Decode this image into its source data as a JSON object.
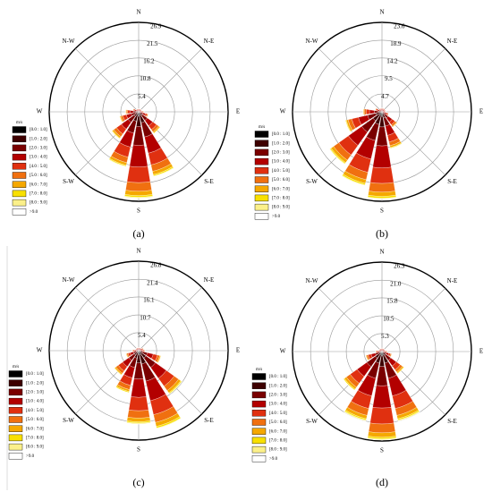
{
  "chart_data": [
    {
      "type": "windrose",
      "caption": "(a)",
      "legend_title": "m/s",
      "categories": [
        "N",
        null,
        "N-E",
        null,
        "E",
        null,
        "S-E",
        null,
        "S",
        null,
        "S-W",
        null,
        "W",
        null,
        "N-W",
        null
      ],
      "rlim": [
        0,
        26.9
      ],
      "rticks": [
        5.4,
        10.8,
        16.2,
        21.5,
        26.9
      ],
      "series": [
        {
          "name": "[0.0 : 1.0]",
          "color": "#000000",
          "values": [
            0.1,
            0.1,
            0.1,
            0.1,
            0.1,
            0.2,
            0.4,
            1,
            1.3,
            0.9,
            0.5,
            0.3,
            0.2,
            0.1,
            0.1,
            0.1
          ]
        },
        {
          "name": "[1.0 : 2.0]",
          "color": "#3d0000",
          "values": [
            0.1,
            0.1,
            0.1,
            0.1,
            0.2,
            0.4,
            1,
            2.4,
            3.1,
            2,
            1.2,
            0.7,
            0.5,
            0.2,
            0.1,
            0.1
          ]
        },
        {
          "name": "[2.0 : 3.0]",
          "color": "#7a0000",
          "values": [
            0.2,
            0.2,
            0.2,
            0.2,
            0.3,
            0.7,
            1.8,
            4.4,
            5.7,
            3.7,
            2.2,
            1.3,
            0.9,
            0.4,
            0.2,
            0.2
          ]
        },
        {
          "name": "[3.0 : 4.0]",
          "color": "#b30000",
          "values": [
            0.3,
            0.3,
            0.3,
            0.3,
            0.4,
            0.8,
            2,
            5,
            6.5,
            4.3,
            2.5,
            1.5,
            1,
            0.5,
            0.3,
            0.3
          ]
        },
        {
          "name": "[4.0 : 5.0]",
          "color": "#e03010",
          "values": [
            0.2,
            0.2,
            0.2,
            0.2,
            0.3,
            0.5,
            1.4,
            3.6,
            4.7,
            3.1,
            1.8,
            1.1,
            0.7,
            0.4,
            0.2,
            0.2
          ]
        },
        {
          "name": "[5.0 : 6.0]",
          "color": "#f07010",
          "values": [
            0.1,
            0.1,
            0.1,
            0.1,
            0.2,
            0.3,
            0.8,
            2,
            2.6,
            1.7,
            1,
            0.6,
            0.4,
            0.2,
            0.1,
            0.1
          ]
        },
        {
          "name": "[6.0 : 7.0]",
          "color": "#f5a800",
          "values": [
            0,
            0,
            0,
            0,
            0.1,
            0.1,
            0.4,
            1,
            1.3,
            0.8,
            0.5,
            0.3,
            0.2,
            0.1,
            0,
            0
          ]
        },
        {
          "name": "[7.0 : 8.0]",
          "color": "#f8e000",
          "values": [
            0,
            0,
            0,
            0,
            0,
            0.1,
            0.2,
            0.4,
            0.5,
            0.3,
            0.2,
            0.1,
            0.1,
            0,
            0,
            0
          ]
        },
        {
          "name": "[8.0 : 9.0]",
          "color": "#fbf08a",
          "values": [
            0,
            0,
            0,
            0,
            0,
            0,
            0,
            0.2,
            0.3,
            0.2,
            0.1,
            0.1,
            0,
            0,
            0,
            0
          ]
        },
        {
          "name": ">9.0",
          "color": "#ffffff",
          "values": [
            0,
            0,
            0,
            0,
            0,
            0,
            0,
            0,
            0,
            0,
            0,
            0,
            0,
            0,
            0,
            0
          ]
        }
      ]
    },
    {
      "type": "windrose",
      "caption": "(b)",
      "legend_title": "m/s",
      "categories": [
        "N",
        null,
        "N-E",
        null,
        "E",
        null,
        "S-E",
        null,
        "S",
        null,
        "S-W",
        null,
        "W",
        null,
        "N-W",
        null
      ],
      "rlim": [
        0,
        23.6
      ],
      "rticks": [
        4.7,
        9.5,
        14.2,
        18.9,
        23.6
      ],
      "series": [
        {
          "name": "[0.0 : 1.0]",
          "color": "#000000",
          "values": [
            0.1,
            0.1,
            0.1,
            0.1,
            0.1,
            0.1,
            0.3,
            0.5,
            1.2,
            1,
            0.9,
            0.5,
            0.3,
            0.1,
            0.1,
            0.1
          ]
        },
        {
          "name": "[1.0 : 2.0]",
          "color": "#3d0000",
          "values": [
            0.1,
            0.1,
            0.1,
            0.1,
            0.1,
            0.2,
            0.6,
            1.2,
            2.8,
            2.4,
            2,
            1.2,
            0.6,
            0.2,
            0.1,
            0.1
          ]
        },
        {
          "name": "[2.0 : 3.0]",
          "color": "#7a0000",
          "values": [
            0.2,
            0.2,
            0.2,
            0.2,
            0.2,
            0.4,
            1.1,
            2.2,
            5,
            4.4,
            3.7,
            2.2,
            1.1,
            0.4,
            0.2,
            0.2
          ]
        },
        {
          "name": "[3.0 : 4.0]",
          "color": "#b30000",
          "values": [
            0.3,
            0.3,
            0.3,
            0.3,
            0.3,
            0.5,
            1.3,
            2.5,
            5.8,
            5,
            4.3,
            2.5,
            1.3,
            0.5,
            0.3,
            0.3
          ]
        },
        {
          "name": "[4.0 : 5.0]",
          "color": "#e03010",
          "values": [
            0.2,
            0.2,
            0.2,
            0.2,
            0.2,
            0.4,
            0.9,
            1.8,
            4.1,
            3.6,
            3.1,
            1.8,
            0.9,
            0.4,
            0.2,
            0.2
          ]
        },
        {
          "name": "[5.0 : 6.0]",
          "color": "#f07010",
          "values": [
            0.1,
            0.1,
            0.1,
            0.1,
            0.1,
            0.2,
            0.5,
            1,
            2.3,
            2,
            1.7,
            1,
            0.5,
            0.2,
            0.1,
            0.1
          ]
        },
        {
          "name": "[6.0 : 7.0]",
          "color": "#f5a800",
          "values": [
            0,
            0,
            0,
            0,
            0,
            0.1,
            0.2,
            0.5,
            1.1,
            1,
            0.8,
            0.5,
            0.2,
            0.1,
            0,
            0
          ]
        },
        {
          "name": "[7.0 : 8.0]",
          "color": "#f8e000",
          "values": [
            0,
            0,
            0,
            0,
            0,
            0,
            0.1,
            0.2,
            0.5,
            0.4,
            0.3,
            0.2,
            0.1,
            0,
            0,
            0
          ]
        },
        {
          "name": "[8.0 : 9.0]",
          "color": "#fbf08a",
          "values": [
            0,
            0,
            0,
            0,
            0,
            0,
            0,
            0.1,
            0.2,
            0.2,
            0.2,
            0.1,
            0,
            0,
            0,
            0
          ]
        },
        {
          "name": ">9.0",
          "color": "#ffffff",
          "values": [
            0,
            0,
            0,
            0,
            0,
            0,
            0,
            0,
            0,
            0,
            0,
            0,
            0,
            0,
            0,
            0
          ]
        }
      ]
    },
    {
      "type": "windrose",
      "caption": "(c)",
      "legend_title": "m/s",
      "categories": [
        "N",
        null,
        "N-E",
        null,
        "E",
        null,
        "S-E",
        null,
        "S",
        null,
        "S-W",
        null,
        "W",
        null,
        "N-W",
        null
      ],
      "rlim": [
        0,
        26.8
      ],
      "rticks": [
        5.4,
        10.7,
        16.1,
        21.4,
        26.8
      ],
      "series": [
        {
          "name": "[0.0 : 1.0]",
          "color": "#000000",
          "values": [
            0.1,
            0.1,
            0.1,
            0.1,
            0.1,
            0.4,
            0.8,
            1.2,
            1.1,
            0.7,
            0.5,
            0.2,
            0.1,
            0.1,
            0.1,
            0.1
          ]
        },
        {
          "name": "[1.0 : 2.0]",
          "color": "#3d0000",
          "values": [
            0.1,
            0.1,
            0.1,
            0.2,
            0.2,
            0.8,
            1.9,
            2.9,
            2.6,
            1.6,
            1.1,
            0.5,
            0.2,
            0.1,
            0.1,
            0.1
          ]
        },
        {
          "name": "[2.0 : 3.0]",
          "color": "#7a0000",
          "values": [
            0.2,
            0.2,
            0.2,
            0.3,
            0.4,
            1.5,
            3.5,
            5.3,
            4.8,
            2.9,
            2,
            0.9,
            0.4,
            0.2,
            0.2,
            0.2
          ]
        },
        {
          "name": "[3.0 : 4.0]",
          "color": "#b30000",
          "values": [
            0.3,
            0.3,
            0.3,
            0.4,
            0.5,
            1.8,
            4,
            6,
            5.5,
            3.2,
            2.3,
            1,
            0.5,
            0.3,
            0.3,
            0.3
          ]
        },
        {
          "name": "[4.0 : 5.0]",
          "color": "#e03010",
          "values": [
            0.2,
            0.2,
            0.2,
            0.3,
            0.4,
            1.3,
            2.9,
            4.3,
            4,
            2.3,
            1.6,
            0.7,
            0.4,
            0.2,
            0.2,
            0.2
          ]
        },
        {
          "name": "[5.0 : 6.0]",
          "color": "#f07010",
          "values": [
            0.1,
            0.1,
            0.1,
            0.2,
            0.2,
            0.7,
            1.6,
            2.4,
            2.2,
            1.3,
            0.9,
            0.4,
            0.2,
            0.1,
            0.1,
            0.1
          ]
        },
        {
          "name": "[6.0 : 7.0]",
          "color": "#f5a800",
          "values": [
            0,
            0,
            0,
            0.1,
            0.1,
            0.3,
            0.8,
            1.2,
            1.1,
            0.6,
            0.4,
            0.2,
            0.1,
            0,
            0,
            0
          ]
        },
        {
          "name": "[7.0 : 8.0]",
          "color": "#f8e000",
          "values": [
            0,
            0,
            0,
            0,
            0,
            0.1,
            0.3,
            0.5,
            0.4,
            0.3,
            0.2,
            0.1,
            0,
            0,
            0,
            0
          ]
        },
        {
          "name": "[8.0 : 9.0]",
          "color": "#fbf08a",
          "values": [
            0,
            0,
            0,
            0,
            0,
            0.1,
            0.2,
            0.2,
            0.3,
            0.1,
            0,
            0,
            0,
            0,
            0,
            0
          ]
        },
        {
          "name": ">9.0",
          "color": "#ffffff",
          "values": [
            0,
            0,
            0,
            0,
            0,
            0,
            0,
            0,
            0,
            0,
            0,
            0,
            0,
            0,
            0,
            0
          ]
        }
      ]
    },
    {
      "type": "windrose",
      "caption": "(d)",
      "legend_title": "m/s",
      "categories": [
        "N",
        null,
        "N-E",
        null,
        "E",
        null,
        "S-E",
        null,
        "S",
        null,
        "S-W",
        null,
        "W",
        null,
        "N-W",
        null
      ],
      "rlim": [
        0,
        26.3
      ],
      "rticks": [
        5.3,
        10.5,
        15.8,
        {
          "value": 21,
          "label": "21.0"
        },
        26.3
      ],
      "series": [
        {
          "name": "[0.0 : 1.0]",
          "color": "#000000",
          "values": [
            0.1,
            0.1,
            0.1,
            0.1,
            0.1,
            0.2,
            0.4,
            1,
            1.3,
            1,
            0.7,
            0.3,
            0.1,
            0.1,
            0.1,
            0.1
          ]
        },
        {
          "name": "[1.0 : 2.0]",
          "color": "#3d0000",
          "values": [
            0.1,
            0.1,
            0.1,
            0.1,
            0.2,
            0.4,
            1,
            2.5,
            3.1,
            2.5,
            1.7,
            0.6,
            0.2,
            0.1,
            0.1,
            0.1
          ]
        },
        {
          "name": "[2.0 : 3.0]",
          "color": "#7a0000",
          "values": [
            0.2,
            0.2,
            0.2,
            0.2,
            0.3,
            0.7,
            1.8,
            4.6,
            5.7,
            4.6,
            3.1,
            1.1,
            0.4,
            0.2,
            0.2,
            0.2
          ]
        },
        {
          "name": "[3.0 : 4.0]",
          "color": "#b30000",
          "values": [
            0.3,
            0.3,
            0.3,
            0.3,
            0.4,
            0.8,
            2,
            5.3,
            6.5,
            5.3,
            3.5,
            1.3,
            0.5,
            0.3,
            0.3,
            0.3
          ]
        },
        {
          "name": "[4.0 : 5.0]",
          "color": "#e03010",
          "values": [
            0.2,
            0.2,
            0.2,
            0.2,
            0.3,
            0.5,
            1.4,
            3.8,
            4.7,
            3.8,
            2.5,
            0.9,
            0.4,
            0.2,
            0.2,
            0.2
          ]
        },
        {
          "name": "[5.0 : 6.0]",
          "color": "#f07010",
          "values": [
            0.1,
            0.1,
            0.1,
            0.1,
            0.2,
            0.3,
            0.8,
            2.1,
            2.6,
            2.1,
            1.4,
            0.5,
            0.2,
            0.1,
            0.1,
            0.1
          ]
        },
        {
          "name": "[6.0 : 7.0]",
          "color": "#f5a800",
          "values": [
            0,
            0,
            0,
            0,
            0.1,
            0.1,
            0.4,
            1,
            1.3,
            1,
            0.7,
            0.2,
            0.1,
            0,
            0,
            0
          ]
        },
        {
          "name": "[7.0 : 8.0]",
          "color": "#f8e000",
          "values": [
            0,
            0,
            0,
            0,
            0,
            0.1,
            0.2,
            0.4,
            0.5,
            0.4,
            0.3,
            0.1,
            0,
            0,
            0,
            0
          ]
        },
        {
          "name": "[8.0 : 9.0]",
          "color": "#fbf08a",
          "values": [
            0,
            0,
            0,
            0,
            0,
            0,
            0,
            0.3,
            0.3,
            0.3,
            0.1,
            0,
            0,
            0,
            0,
            0
          ]
        },
        {
          "name": ">9.0",
          "color": "#ffffff",
          "values": [
            0,
            0,
            0,
            0,
            0,
            0,
            0,
            0,
            0,
            0,
            0,
            0,
            0,
            0,
            0,
            0
          ]
        }
      ]
    }
  ]
}
